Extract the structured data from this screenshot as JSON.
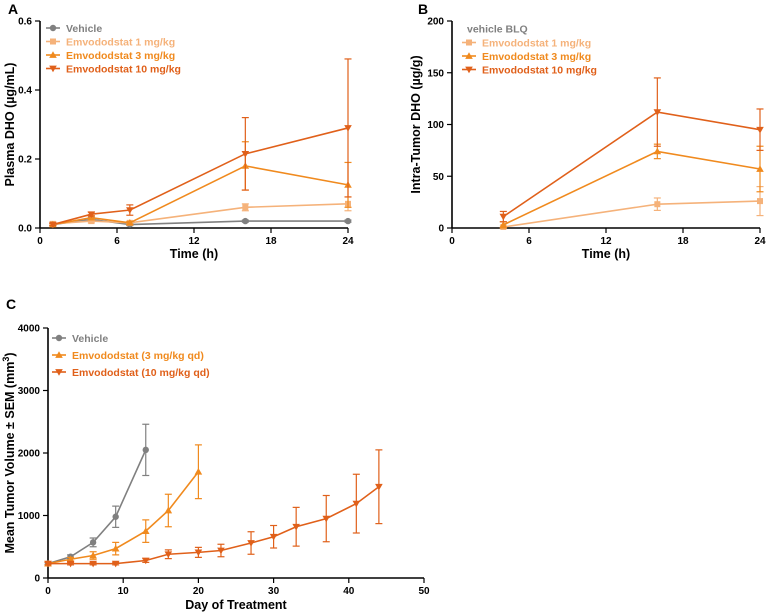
{
  "chart_data": [
    {
      "panel": "A",
      "type": "line",
      "xlabel": "Time (h)",
      "ylabel": "Plasma DHO (µg/mL)",
      "xlim": [
        0,
        24
      ],
      "ylim": [
        0,
        0.6
      ],
      "xticks": [
        "0",
        "6",
        "12",
        "18",
        "24"
      ],
      "yticks": [
        "0.0",
        "0.2",
        "0.4",
        "0.6"
      ],
      "legend_title": "",
      "series": [
        {
          "name": "Vehicle",
          "color": "#808080",
          "marker": "circle",
          "x": [
            1,
            4,
            7,
            16,
            24
          ],
          "y": [
            0.01,
            0.025,
            0.01,
            0.02,
            0.02
          ],
          "err": [
            0.003,
            0.005,
            0.003,
            0.003,
            0.003
          ]
        },
        {
          "name": "Emvododstat 1 mg/kg",
          "color": "#f5b27a",
          "marker": "square",
          "x": [
            1,
            4,
            7,
            16,
            24
          ],
          "y": [
            0.012,
            0.02,
            0.015,
            0.06,
            0.07
          ],
          "err": [
            0.003,
            0.005,
            0.004,
            0.01,
            0.02
          ]
        },
        {
          "name": "Emvododstat 3 mg/kg",
          "color": "#f08a1e",
          "marker": "triangle-up",
          "x": [
            1,
            4,
            7,
            16,
            24
          ],
          "y": [
            0.01,
            0.03,
            0.015,
            0.18,
            0.125
          ],
          "err": [
            0.003,
            0.006,
            0.004,
            0.07,
            0.065
          ]
        },
        {
          "name": "Emvododstat 10 mg/kg",
          "color": "#e0601a",
          "marker": "triangle-down",
          "x": [
            1,
            4,
            7,
            16,
            24
          ],
          "y": [
            0.01,
            0.04,
            0.052,
            0.215,
            0.29
          ],
          "err": [
            0.003,
            0.006,
            0.015,
            0.105,
            0.2
          ]
        }
      ]
    },
    {
      "panel": "B",
      "type": "line",
      "xlabel": "Time (h)",
      "ylabel": "Intra-Tumor DHO (µg/g)",
      "xlim": [
        0,
        24
      ],
      "ylim": [
        0,
        200
      ],
      "xticks": [
        "0",
        "6",
        "12",
        "18",
        "24"
      ],
      "yticks": [
        "0",
        "50",
        "100",
        "150",
        "200"
      ],
      "legend_title": "vehicle BLQ",
      "series": [
        {
          "name": "Emvododstat 1 mg/kg",
          "color": "#f5b27a",
          "marker": "square",
          "x": [
            4,
            16,
            24
          ],
          "y": [
            1,
            23,
            26
          ],
          "err": [
            1,
            6,
            14
          ]
        },
        {
          "name": "Emvododstat 3 mg/kg",
          "color": "#f08a1e",
          "marker": "triangle-up",
          "x": [
            4,
            16,
            24
          ],
          "y": [
            3,
            74,
            57
          ],
          "err": [
            3,
            7,
            22
          ]
        },
        {
          "name": "Emvododstat 10 mg/kg",
          "color": "#e0601a",
          "marker": "triangle-down",
          "x": [
            4,
            16,
            24
          ],
          "y": [
            11,
            112,
            95
          ],
          "err": [
            5,
            33,
            20
          ]
        }
      ]
    },
    {
      "panel": "C",
      "type": "line",
      "xlabel": "Day of Treatment",
      "ylabel_main": "Mean Tumor Volume ± SEM  (mm",
      "ylabel_sup": "3",
      "ylabel_end": ")",
      "xlim": [
        0,
        50
      ],
      "ylim": [
        0,
        4000
      ],
      "xticks": [
        "0",
        "10",
        "20",
        "30",
        "40",
        "50"
      ],
      "yticks": [
        "0",
        "1000",
        "2000",
        "3000",
        "4000"
      ],
      "legend_title": "",
      "series": [
        {
          "name": "Vehicle",
          "color": "#808080",
          "marker": "circle",
          "x": [
            0,
            3,
            6,
            9,
            13
          ],
          "y": [
            230,
            340,
            570,
            980,
            2050
          ],
          "err": [
            20,
            30,
            70,
            170,
            410
          ]
        },
        {
          "name": "Emvododstat (3 mg/kg qd)",
          "color": "#f08a1e",
          "marker": "triangle-up",
          "x": [
            0,
            3,
            6,
            9,
            13,
            16,
            20
          ],
          "y": [
            230,
            300,
            360,
            470,
            750,
            1080,
            1700
          ],
          "err": [
            20,
            30,
            60,
            100,
            180,
            260,
            430
          ]
        },
        {
          "name": "Emvododstat (10 mg/kg qd)",
          "color": "#e0601a",
          "marker": "triangle-down",
          "x": [
            0,
            3,
            6,
            9,
            13,
            16,
            20,
            23,
            27,
            30,
            33,
            37,
            41,
            44
          ],
          "y": [
            230,
            230,
            230,
            230,
            280,
            380,
            410,
            440,
            560,
            660,
            820,
            950,
            1190,
            1460
          ],
          "err": [
            20,
            20,
            20,
            20,
            30,
            70,
            80,
            100,
            180,
            180,
            310,
            370,
            470,
            590
          ]
        }
      ]
    }
  ]
}
